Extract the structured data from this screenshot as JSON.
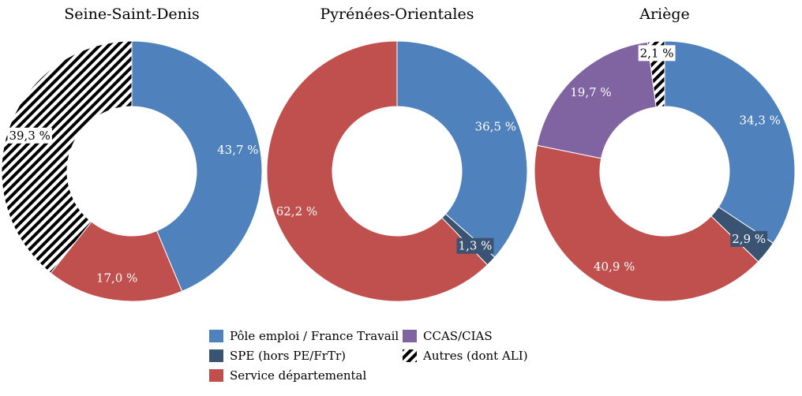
{
  "chart_data": {
    "type": "pie",
    "colors": {
      "pole_emploi": "#4F81BD",
      "spe": "#3A5373",
      "service_departemental": "#C0504D",
      "ccas": "#8064A2",
      "autres": "hatch"
    },
    "legend": [
      {
        "key": "pole_emploi",
        "label": "Pôle emploi / France Travail"
      },
      {
        "key": "spe",
        "label": "SPE (hors PE/FrTr)"
      },
      {
        "key": "service_departemental",
        "label": "Service départemental"
      },
      {
        "key": "ccas",
        "label": "CCAS/CIAS"
      },
      {
        "key": "autres",
        "label": "Autres (dont ALI)"
      }
    ],
    "legend_position": "bottom",
    "charts": [
      {
        "title": "Seine-Saint-Denis",
        "slices": [
          {
            "key": "pole_emploi",
            "value": 43.7,
            "label": "43,7 %"
          },
          {
            "key": "service_departemental",
            "value": 17.0,
            "label": "17,0 %"
          },
          {
            "key": "autres",
            "value": 39.3,
            "label": "39,3 %"
          }
        ]
      },
      {
        "title": "Pyrénées-Orientales",
        "slices": [
          {
            "key": "pole_emploi",
            "value": 36.5,
            "label": "36,5 %"
          },
          {
            "key": "spe",
            "value": 1.3,
            "label": "1,3 %"
          },
          {
            "key": "service_departemental",
            "value": 62.2,
            "label": "62,2 %"
          }
        ]
      },
      {
        "title": "Ariège",
        "slices": [
          {
            "key": "pole_emploi",
            "value": 34.3,
            "label": "34,3 %"
          },
          {
            "key": "spe",
            "value": 2.9,
            "label": "2,9 %"
          },
          {
            "key": "service_departemental",
            "value": 40.9,
            "label": "40,9 %"
          },
          {
            "key": "ccas",
            "value": 19.7,
            "label": "19,7 %"
          },
          {
            "key": "autres",
            "value": 2.1,
            "label": "2,1 %"
          }
        ]
      }
    ]
  }
}
